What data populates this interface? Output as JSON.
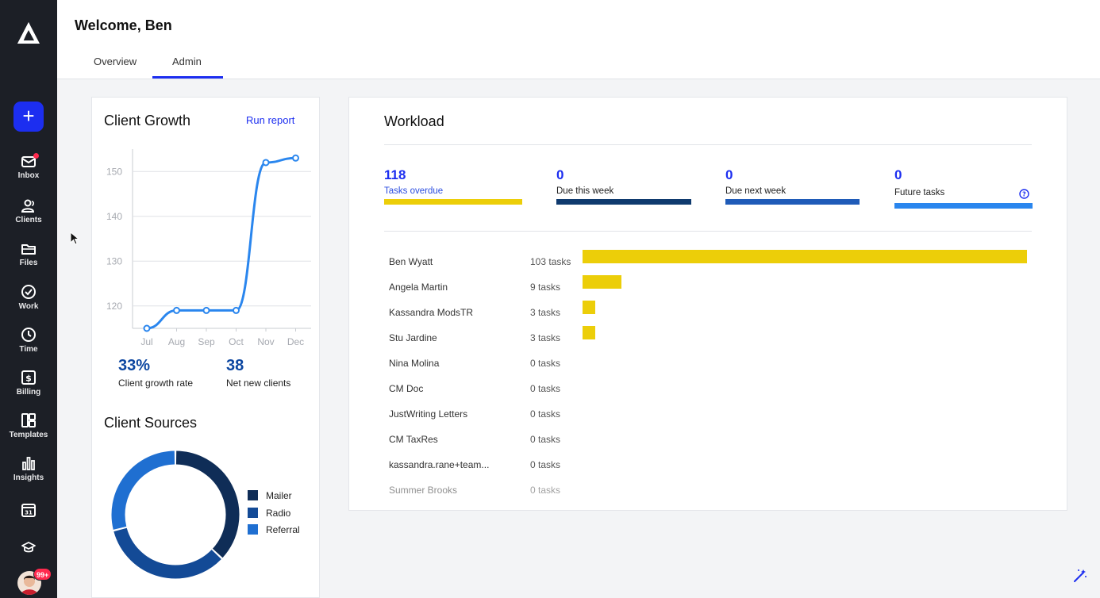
{
  "sidebar": {
    "add_label": "+",
    "items": [
      {
        "label": "Inbox",
        "icon": "mail-icon"
      },
      {
        "label": "Clients",
        "icon": "users-icon"
      },
      {
        "label": "Files",
        "icon": "folder-icon"
      },
      {
        "label": "Work",
        "icon": "check-circle-icon"
      },
      {
        "label": "Time",
        "icon": "clock-icon"
      },
      {
        "label": "Billing",
        "icon": "dollar-icon"
      },
      {
        "label": "Templates",
        "icon": "templates-icon"
      },
      {
        "label": "Insights",
        "icon": "bar-chart-icon"
      }
    ],
    "avatar_badge": "99+"
  },
  "header": {
    "welcome": "Welcome, Ben",
    "tabs": [
      {
        "label": "Overview"
      },
      {
        "label": "Admin",
        "active": true
      }
    ]
  },
  "client_growth": {
    "title": "Client Growth",
    "run_report": "Run report",
    "growth_rate": "33%",
    "growth_rate_label": "Client growth rate",
    "net_new": "38",
    "net_new_label": "Net new clients"
  },
  "client_sources": {
    "title": "Client Sources",
    "legend": [
      {
        "label": "Mailer",
        "color": "#0f2d57"
      },
      {
        "label": "Radio",
        "color": "#134a96"
      },
      {
        "label": "Referral",
        "color": "#1f6fd1"
      }
    ]
  },
  "chart_data": [
    {
      "type": "line",
      "title": "Client Growth",
      "categories": [
        "Jul",
        "Aug",
        "Sep",
        "Oct",
        "Nov",
        "Dec"
      ],
      "values": [
        115,
        119,
        119,
        119,
        152,
        153
      ],
      "yticks": [
        "120",
        "130",
        "140",
        "150"
      ],
      "ylim": [
        115,
        155
      ],
      "xlabel": "",
      "ylabel": "",
      "color": "#2a86ee"
    },
    {
      "type": "pie",
      "title": "Client Sources",
      "donut": true,
      "labels": [
        "Mailer",
        "Radio",
        "Referral"
      ],
      "values": [
        37,
        34,
        29
      ]
    }
  ],
  "workload": {
    "title": "Workload",
    "metrics": [
      {
        "value": "118",
        "label": "Tasks overdue",
        "color": "#ecce09"
      },
      {
        "value": "0",
        "label": "Due this week",
        "color": "#0f3a6e"
      },
      {
        "value": "0",
        "label": "Due next week",
        "color": "#1f5bb8"
      },
      {
        "value": "0",
        "label": "Future tasks",
        "color": "#2a86ee"
      }
    ],
    "people": [
      {
        "name": "Ben Wyatt",
        "tasks": "103 tasks",
        "count": 103
      },
      {
        "name": "Angela Martin",
        "tasks": "9 tasks",
        "count": 9
      },
      {
        "name": "Kassandra ModsTR",
        "tasks": "3 tasks",
        "count": 3
      },
      {
        "name": "Stu Jardine",
        "tasks": "3 tasks",
        "count": 3
      },
      {
        "name": "Nina Molina",
        "tasks": "0 tasks",
        "count": 0
      },
      {
        "name": "CM Doc",
        "tasks": "0 tasks",
        "count": 0
      },
      {
        "name": "JustWriting Letters",
        "tasks": "0 tasks",
        "count": 0
      },
      {
        "name": "CM TaxRes",
        "tasks": "0 tasks",
        "count": 0
      },
      {
        "name": "kassandra.rane+team...",
        "tasks": "0 tasks",
        "count": 0
      },
      {
        "name": "Summer Brooks",
        "tasks": "0 tasks",
        "count": 0
      }
    ]
  }
}
